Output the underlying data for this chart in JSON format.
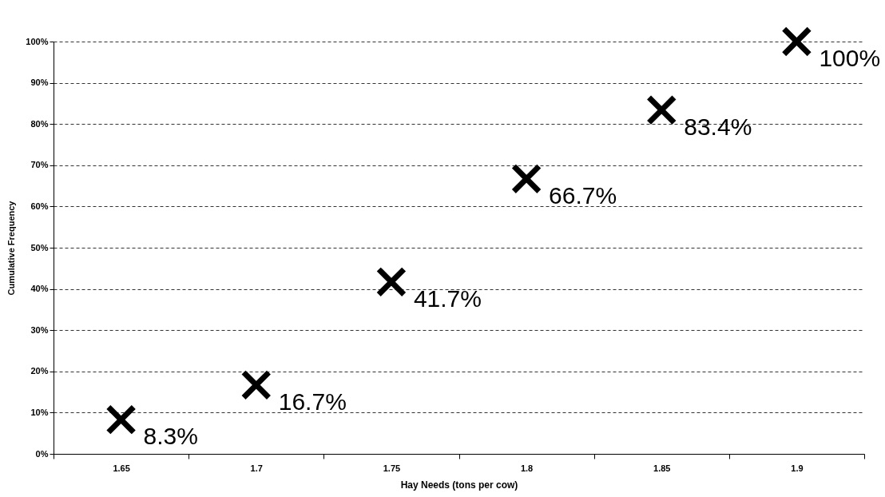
{
  "chart_data": {
    "type": "scatter",
    "xlabel": "Hay Needs (tons per cow)",
    "ylabel": "Cumulative Frequency",
    "categories": [
      "1.65",
      "1.7",
      "1.75",
      "1.8",
      "1.85",
      "1.9"
    ],
    "series": [
      {
        "color": "#000000",
        "values": [
          8.3,
          16.7,
          41.7,
          66.7,
          83.4,
          100
        ],
        "value_labels": [
          "8.3%",
          "16.7%",
          "41.7%",
          "66.7%",
          "83.4%",
          "100%"
        ]
      }
    ],
    "ylim": [
      0,
      100
    ],
    "yticks": [
      {
        "value": 0,
        "label": "0%"
      },
      {
        "value": 10,
        "label": "10%"
      },
      {
        "value": 20,
        "label": "20%"
      },
      {
        "value": 30,
        "label": "30%"
      },
      {
        "value": 40,
        "label": "40%"
      },
      {
        "value": 50,
        "label": "50%"
      },
      {
        "value": 60,
        "label": "60%"
      },
      {
        "value": 70,
        "label": "70%"
      },
      {
        "value": 80,
        "label": "80%"
      },
      {
        "value": 90,
        "label": "90%"
      },
      {
        "value": 100,
        "label": "100%"
      }
    ],
    "grid": "y",
    "marker": "cross",
    "line_style": "dashed"
  }
}
